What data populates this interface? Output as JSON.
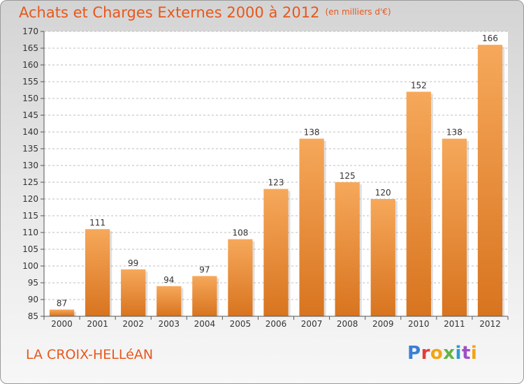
{
  "header": {
    "title": "Achats et Charges Externes 2000 à 2012",
    "subtitle": "(en milliers d'€)"
  },
  "footer": {
    "commune": "LA CROIX-HELLéAN",
    "logo_text": "Proxiti"
  },
  "colors": {
    "accent": "#e8571b",
    "bar_top": "#f6a85a",
    "bar_bottom": "#d8741f",
    "grid": "#bdbdbd"
  },
  "chart_data": {
    "type": "bar",
    "title": "Achats et Charges Externes 2000 à 2012",
    "subtitle": "(en milliers d'€)",
    "categories": [
      "2000",
      "2001",
      "2002",
      "2003",
      "2004",
      "2005",
      "2006",
      "2007",
      "2008",
      "2009",
      "2010",
      "2011",
      "2012"
    ],
    "values": [
      87,
      111,
      99,
      94,
      97,
      108,
      123,
      138,
      125,
      120,
      152,
      138,
      166
    ],
    "ylim": [
      85,
      170
    ],
    "yticks": [
      85,
      90,
      95,
      100,
      105,
      110,
      115,
      120,
      125,
      130,
      135,
      140,
      145,
      150,
      155,
      160,
      165,
      170
    ],
    "grid": true,
    "xlabel": "",
    "ylabel": ""
  }
}
